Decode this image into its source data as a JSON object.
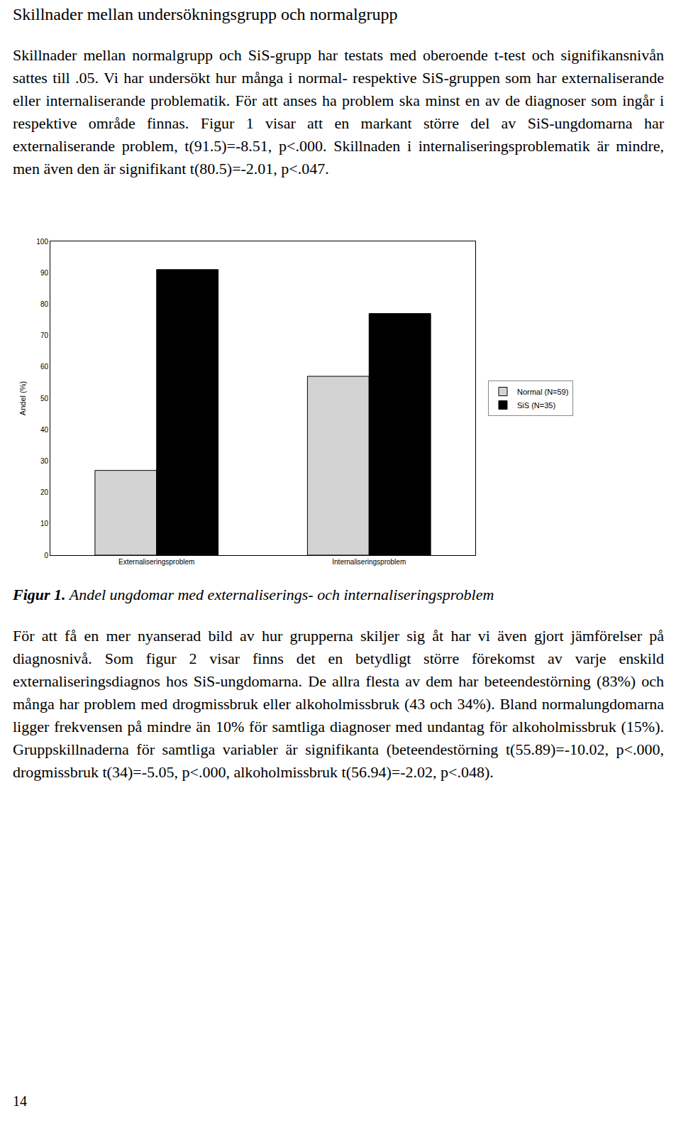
{
  "heading": "Skillnader mellan undersökningsgrupp och normalgrupp",
  "paragraph_1": "Skillnader mellan normalgrupp och SiS-grupp har testats med oberoende t-test och signifikansnivån sattes till .05. Vi har undersökt hur många i normal- respektive SiS-gruppen som har externaliserande eller internaliserande problematik. För att anses ha problem ska minst en av de diagnoser som ingår i respektive område finnas. Figur 1 visar att en markant större del av SiS-ungdomarna har externaliserande problem, t(91.5)=-8.51, p<.000. Skillnaden i internaliseringsproblematik är mindre, men även den är signifikant t(80.5)=-2.01, p<.047.",
  "chart_data": {
    "type": "bar",
    "y_label": "Andel (%)",
    "categories": [
      "Externaliseringsproblem",
      "Internaliseringsproblem"
    ],
    "series": [
      {
        "name": "Normal (N=59)",
        "color": "#d3d3d3",
        "values": [
          27,
          57
        ]
      },
      {
        "name": "SiS (N=35)",
        "color": "#000000",
        "values": [
          91,
          77
        ]
      }
    ],
    "ylim": [
      0,
      100
    ],
    "yticks": [
      0,
      10,
      20,
      30,
      40,
      50,
      60,
      70,
      80,
      90,
      100
    ],
    "grid": false,
    "legend": "right"
  },
  "caption": {
    "label": "Figur 1.",
    "text": "Andel ungdomar med externaliserings- och internaliseringsproblem"
  },
  "paragraph_2": "För att få en mer nyanserad bild av hur grupperna skiljer sig åt har vi även gjort jämförelser på diagnosnivå. Som figur 2 visar finns det en betydligt större förekomst av varje enskild externaliseringsdiagnos hos SiS-ungdomarna. De allra flesta av dem har beteendestörning (83%) och många har problem med drogmissbruk eller alkoholmissbruk (43 och 34%). Bland normalungdomarna ligger frekvensen på mindre än 10% för samtliga diagnoser med undantag för alkoholmissbruk (15%). Gruppskillnaderna för samtliga variabler är signifikanta (beteendestörning t(55.89)=-10.02, p<.000, drogmissbruk t(34)=-5.05, p<.000, alkoholmissbruk t(56.94)=-2.02, p<.048).",
  "page_number": "14"
}
